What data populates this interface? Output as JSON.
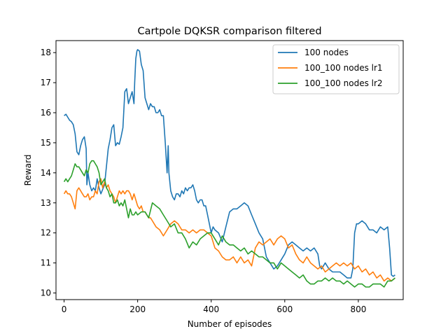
{
  "chart_data": {
    "type": "line",
    "title": "Cartpole DQKSR comparison filtered",
    "xlabel": "Number of episodes",
    "ylabel": "Reward",
    "xlim": [
      -22,
      922
    ],
    "ylim": [
      9.78,
      18.4
    ],
    "xticks": [
      0,
      200,
      400,
      600,
      800
    ],
    "yticks": [
      10,
      11,
      12,
      13,
      14,
      15,
      16,
      17,
      18
    ],
    "grid": false,
    "legend_position": "top-right",
    "series": [
      {
        "name": "100 nodes",
        "color": "#1f77b4",
        "x": [
          0,
          5,
          10,
          15,
          20,
          25,
          30,
          35,
          40,
          45,
          50,
          55,
          60,
          62,
          65,
          70,
          75,
          80,
          85,
          90,
          95,
          100,
          110,
          120,
          125,
          130,
          135,
          140,
          145,
          150,
          155,
          160,
          165,
          170,
          175,
          180,
          185,
          190,
          192,
          195,
          198,
          200,
          205,
          210,
          215,
          220,
          225,
          230,
          235,
          240,
          245,
          250,
          255,
          260,
          265,
          270,
          275,
          280,
          283,
          285,
          290,
          295,
          300,
          305,
          310,
          315,
          320,
          325,
          330,
          335,
          340,
          345,
          350,
          355,
          360,
          365,
          370,
          375,
          380,
          385,
          390,
          395,
          400,
          405,
          410,
          420,
          430,
          440,
          450,
          460,
          470,
          480,
          490,
          500,
          510,
          520,
          530,
          540,
          550,
          560,
          570,
          580,
          590,
          600,
          610,
          620,
          630,
          640,
          650,
          660,
          670,
          680,
          690,
          695,
          700,
          705,
          710,
          720,
          730,
          740,
          750,
          760,
          770,
          780,
          785,
          790,
          795,
          800,
          810,
          820,
          830,
          840,
          850,
          860,
          870,
          880,
          885,
          890,
          895,
          900
        ],
        "y": [
          15.9,
          15.95,
          15.85,
          15.75,
          15.7,
          15.6,
          15.3,
          14.7,
          14.6,
          14.9,
          15.1,
          15.2,
          14.8,
          13.6,
          14.0,
          13.6,
          13.4,
          13.5,
          13.4,
          13.8,
          13.5,
          13.3,
          13.6,
          14.8,
          15.1,
          15.5,
          15.6,
          14.9,
          15.0,
          14.95,
          15.2,
          15.5,
          16.7,
          16.8,
          16.3,
          16.5,
          16.7,
          16.3,
          17.0,
          17.8,
          18.05,
          18.1,
          18.05,
          17.6,
          17.4,
          16.5,
          16.3,
          16.1,
          16.3,
          16.2,
          16.2,
          16.0,
          16.0,
          16.1,
          15.9,
          15.9,
          15.0,
          14.0,
          14.9,
          14.0,
          13.4,
          13.2,
          13.1,
          13.3,
          13.3,
          13.2,
          13.4,
          13.3,
          13.5,
          13.4,
          13.5,
          13.5,
          13.6,
          13.4,
          13.1,
          13.0,
          13.1,
          13.1,
          12.9,
          12.9,
          12.6,
          12.3,
          12.0,
          12.2,
          12.1,
          12.0,
          11.7,
          12.2,
          12.7,
          12.8,
          12.8,
          12.9,
          13.0,
          12.9,
          12.6,
          12.3,
          12.0,
          11.8,
          11.2,
          11.0,
          10.8,
          10.9,
          11.1,
          11.3,
          11.6,
          11.7,
          11.6,
          11.5,
          11.4,
          11.5,
          11.4,
          11.5,
          11.3,
          10.9,
          10.8,
          10.9,
          11.0,
          10.8,
          10.7,
          10.7,
          10.7,
          10.6,
          10.5,
          10.5,
          10.8,
          12.0,
          12.3,
          12.3,
          12.4,
          12.3,
          12.1,
          12.1,
          12.0,
          12.2,
          12.1,
          12.2,
          11.5,
          10.6,
          10.55,
          10.6
        ]
      },
      {
        "name": "100_100 nodes lr1",
        "color": "#ff7f0e",
        "x": [
          0,
          5,
          10,
          15,
          20,
          25,
          30,
          35,
          40,
          45,
          50,
          55,
          60,
          65,
          70,
          75,
          80,
          85,
          90,
          95,
          100,
          105,
          110,
          115,
          120,
          125,
          130,
          135,
          140,
          145,
          150,
          155,
          160,
          165,
          170,
          175,
          180,
          185,
          190,
          195,
          200,
          205,
          210,
          215,
          220,
          225,
          230,
          235,
          240,
          245,
          250,
          260,
          270,
          280,
          290,
          300,
          310,
          320,
          330,
          340,
          350,
          360,
          370,
          380,
          390,
          400,
          410,
          420,
          430,
          440,
          450,
          460,
          470,
          480,
          490,
          500,
          510,
          520,
          530,
          540,
          550,
          560,
          570,
          580,
          590,
          600,
          610,
          620,
          630,
          640,
          650,
          660,
          670,
          680,
          690,
          700,
          710,
          720,
          730,
          740,
          750,
          760,
          770,
          780,
          790,
          800,
          810,
          820,
          830,
          840,
          850,
          860,
          870,
          880,
          890,
          900
        ],
        "y": [
          13.3,
          13.4,
          13.3,
          13.3,
          13.2,
          13.0,
          12.8,
          13.4,
          13.5,
          13.4,
          13.3,
          13.2,
          13.2,
          13.3,
          13.1,
          13.2,
          13.2,
          13.4,
          13.3,
          13.7,
          13.8,
          13.5,
          13.7,
          13.5,
          13.6,
          13.4,
          13.3,
          13.2,
          13.0,
          13.2,
          13.4,
          13.3,
          13.4,
          13.3,
          13.4,
          13.4,
          13.3,
          13.1,
          13.3,
          13.1,
          12.9,
          12.8,
          12.9,
          12.7,
          12.7,
          12.6,
          12.5,
          12.5,
          12.4,
          12.3,
          12.2,
          12.1,
          11.9,
          12.1,
          12.3,
          12.4,
          12.3,
          12.1,
          12.1,
          12.0,
          12.1,
          12.0,
          12.1,
          12.1,
          12.0,
          11.9,
          11.5,
          11.4,
          11.2,
          11.1,
          11.1,
          11.2,
          11.0,
          11.2,
          11.0,
          11.1,
          10.9,
          11.5,
          11.7,
          11.6,
          11.7,
          11.8,
          11.6,
          11.8,
          11.9,
          11.8,
          11.5,
          11.6,
          11.3,
          11.1,
          11.0,
          11.2,
          11.0,
          10.9,
          10.8,
          10.9,
          10.7,
          10.8,
          10.9,
          11.0,
          10.9,
          11.0,
          10.9,
          11.0,
          10.8,
          10.9,
          10.7,
          10.8,
          10.6,
          10.7,
          10.5,
          10.6,
          10.4,
          10.5,
          10.4,
          10.5
        ]
      },
      {
        "name": "100_100 nodes lr2",
        "color": "#2ca02c",
        "x": [
          0,
          5,
          10,
          15,
          20,
          25,
          30,
          35,
          40,
          45,
          50,
          55,
          60,
          65,
          70,
          75,
          80,
          85,
          90,
          95,
          100,
          105,
          110,
          115,
          120,
          125,
          130,
          135,
          140,
          145,
          150,
          155,
          160,
          165,
          170,
          175,
          180,
          185,
          190,
          195,
          200,
          210,
          220,
          230,
          240,
          250,
          260,
          270,
          280,
          290,
          300,
          310,
          320,
          330,
          340,
          350,
          360,
          370,
          380,
          390,
          400,
          410,
          420,
          430,
          440,
          450,
          460,
          470,
          480,
          490,
          500,
          510,
          520,
          530,
          540,
          550,
          560,
          570,
          580,
          590,
          600,
          610,
          620,
          630,
          640,
          650,
          660,
          670,
          680,
          690,
          700,
          710,
          720,
          730,
          740,
          750,
          760,
          770,
          780,
          790,
          800,
          810,
          820,
          830,
          840,
          850,
          860,
          870,
          880,
          890,
          900
        ],
        "y": [
          13.7,
          13.8,
          13.7,
          13.8,
          13.9,
          14.1,
          14.3,
          14.2,
          14.2,
          14.1,
          14.0,
          13.9,
          14.1,
          14.0,
          14.3,
          14.4,
          14.4,
          14.3,
          14.2,
          14.0,
          13.6,
          13.7,
          13.8,
          13.5,
          13.4,
          13.2,
          13.3,
          13.0,
          13.0,
          13.1,
          12.9,
          13.0,
          12.9,
          13.1,
          12.8,
          12.5,
          12.8,
          12.6,
          12.6,
          12.7,
          12.6,
          12.7,
          12.7,
          12.5,
          13.0,
          12.9,
          12.8,
          12.6,
          12.4,
          12.2,
          12.3,
          12.0,
          12.0,
          11.8,
          11.5,
          11.7,
          11.6,
          11.8,
          11.9,
          12.0,
          12.0,
          11.8,
          11.6,
          11.9,
          11.7,
          11.6,
          11.6,
          11.5,
          11.4,
          11.5,
          11.3,
          11.4,
          11.3,
          11.2,
          11.2,
          11.1,
          11.0,
          11.0,
          10.8,
          11.0,
          10.9,
          10.8,
          10.7,
          10.6,
          10.5,
          10.6,
          10.4,
          10.3,
          10.3,
          10.4,
          10.4,
          10.5,
          10.4,
          10.5,
          10.4,
          10.4,
          10.3,
          10.4,
          10.3,
          10.2,
          10.3,
          10.3,
          10.2,
          10.2,
          10.3,
          10.3,
          10.3,
          10.2,
          10.4,
          10.4,
          10.5
        ]
      }
    ]
  }
}
